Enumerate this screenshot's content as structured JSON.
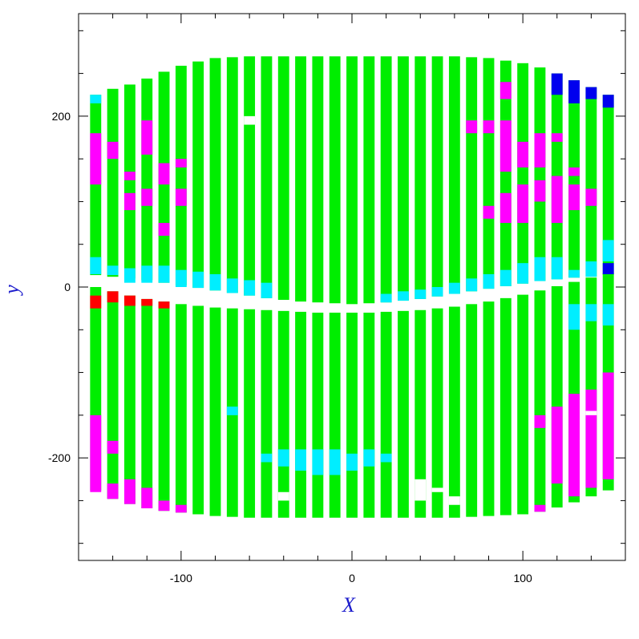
{
  "chart_data": {
    "type": "heatmap",
    "title": "",
    "xlabel": "X",
    "ylabel": "y",
    "xlim": [
      -160,
      160
    ],
    "ylim": [
      -320,
      320
    ],
    "x_ticks_labeled": [
      "-100",
      "0",
      "100"
    ],
    "x_tick_values": [
      -100,
      0,
      100
    ],
    "y_ticks_labeled": [
      "-200",
      "0",
      "200"
    ],
    "y_tick_values": [
      -200,
      0,
      200
    ],
    "grid": false,
    "legend": "none",
    "colors": {
      "green": "#00ee00",
      "cyan": "#00eeff",
      "magenta": "#ff00ff",
      "blue": "#0000ee",
      "red": "#ff0000",
      "axis_title": "#1c1ccc",
      "frame": "#000000"
    },
    "strip": {
      "x_centers": [
        -150,
        -140,
        -130,
        -120,
        -110,
        -100,
        -90,
        -80,
        -70,
        -60,
        -50,
        -40,
        -30,
        -20,
        -10,
        0,
        10,
        20,
        30,
        40,
        50,
        60,
        70,
        80,
        90,
        100,
        110,
        120,
        130,
        140,
        150
      ],
      "width": 6.5,
      "upper_top": [
        225,
        232,
        237,
        244,
        252,
        259,
        264,
        268,
        269,
        270,
        270,
        270,
        270,
        270,
        270,
        270,
        270,
        270,
        270,
        270,
        270,
        270,
        269,
        268,
        265,
        262,
        257,
        250,
        242,
        234,
        225
      ],
      "upper_bottom": [
        14,
        12,
        10,
        8,
        5,
        2,
        -1,
        -4,
        -7,
        -10,
        -13,
        -15,
        -17,
        -18,
        -19,
        -20,
        -19,
        -18,
        -16,
        -14,
        -11,
        -8,
        -5,
        -2,
        1,
        4,
        7,
        9,
        11,
        12,
        14
      ],
      "lower_top": [
        0,
        -5,
        -10,
        -14,
        -17,
        -20,
        -22,
        -24,
        -25,
        -26,
        -27,
        -28,
        -29,
        -30,
        -30,
        -30,
        -30,
        -29,
        -28,
        -27,
        -25,
        -23,
        -20,
        -17,
        -13,
        -9,
        -4,
        1,
        6,
        11,
        16
      ],
      "lower_bottom": [
        -238,
        -248,
        -254,
        -259,
        -262,
        -264,
        -266,
        -268,
        -269,
        -270,
        -270,
        -270,
        -270,
        -270,
        -270,
        -270,
        -270,
        -270,
        -270,
        -270,
        -270,
        -270,
        -269,
        -268,
        -267,
        -266,
        -263,
        -258,
        -252,
        -245,
        -238
      ]
    },
    "segments": [
      {
        "x": -150,
        "y0": 120,
        "y1": 180,
        "color": "magenta"
      },
      {
        "x": -150,
        "y0": 15,
        "y1": 35,
        "color": "cyan"
      },
      {
        "x": -150,
        "y0": -10,
        "y1": -25,
        "color": "red"
      },
      {
        "x": -150,
        "y0": -150,
        "y1": -240,
        "color": "magenta"
      },
      {
        "x": -150,
        "y0": 215,
        "y1": 225,
        "color": "cyan"
      },
      {
        "x": -140,
        "y0": 150,
        "y1": 170,
        "color": "magenta"
      },
      {
        "x": -140,
        "y0": 14,
        "y1": 25,
        "color": "cyan"
      },
      {
        "x": -140,
        "y0": -5,
        "y1": -18,
        "color": "red"
      },
      {
        "x": -140,
        "y0": -180,
        "y1": -195,
        "color": "magenta"
      },
      {
        "x": -140,
        "y0": -230,
        "y1": -248,
        "color": "magenta"
      },
      {
        "x": -130,
        "y0": 90,
        "y1": 110,
        "color": "magenta"
      },
      {
        "x": -130,
        "y0": 125,
        "y1": 135,
        "color": "magenta"
      },
      {
        "x": -130,
        "y0": 5,
        "y1": 22,
        "color": "cyan"
      },
      {
        "x": -130,
        "y0": -10,
        "y1": -22,
        "color": "red"
      },
      {
        "x": -130,
        "y0": -225,
        "y1": -254,
        "color": "magenta"
      },
      {
        "x": -120,
        "y0": 95,
        "y1": 115,
        "color": "magenta"
      },
      {
        "x": -120,
        "y0": 155,
        "y1": 195,
        "color": "magenta"
      },
      {
        "x": -120,
        "y0": 5,
        "y1": 25,
        "color": "cyan"
      },
      {
        "x": -120,
        "y0": -14,
        "y1": -22,
        "color": "red"
      },
      {
        "x": -120,
        "y0": -235,
        "y1": -259,
        "color": "magenta"
      },
      {
        "x": -110,
        "y0": 120,
        "y1": 145,
        "color": "magenta"
      },
      {
        "x": -110,
        "y0": 60,
        "y1": 75,
        "color": "magenta"
      },
      {
        "x": -110,
        "y0": 5,
        "y1": 25,
        "color": "cyan"
      },
      {
        "x": -110,
        "y0": -17,
        "y1": -25,
        "color": "red"
      },
      {
        "x": -110,
        "y0": -250,
        "y1": -262,
        "color": "magenta"
      },
      {
        "x": -100,
        "y0": 95,
        "y1": 115,
        "color": "magenta"
      },
      {
        "x": -100,
        "y0": 140,
        "y1": 150,
        "color": "magenta"
      },
      {
        "x": -100,
        "y0": 0,
        "y1": 20,
        "color": "cyan"
      },
      {
        "x": -100,
        "y0": -255,
        "y1": -264,
        "color": "magenta"
      },
      {
        "x": -90,
        "y0": -1,
        "y1": 18,
        "color": "cyan"
      },
      {
        "x": -80,
        "y0": -4,
        "y1": 15,
        "color": "cyan"
      },
      {
        "x": -70,
        "y0": -7,
        "y1": 10,
        "color": "cyan"
      },
      {
        "x": -70,
        "y0": -140,
        "y1": -150,
        "color": "cyan"
      },
      {
        "x": -60,
        "y0": -10,
        "y1": 8,
        "color": "cyan"
      },
      {
        "x": -50,
        "y0": -13,
        "y1": 5,
        "color": "cyan"
      },
      {
        "x": -50,
        "y0": -195,
        "y1": -205,
        "color": "cyan"
      },
      {
        "x": -40,
        "y0": -190,
        "y1": -210,
        "color": "cyan"
      },
      {
        "x": -30,
        "y0": -190,
        "y1": -215,
        "color": "cyan"
      },
      {
        "x": -20,
        "y0": -190,
        "y1": -220,
        "color": "cyan"
      },
      {
        "x": -10,
        "y0": -190,
        "y1": -220,
        "color": "cyan"
      },
      {
        "x": 0,
        "y0": -195,
        "y1": -215,
        "color": "cyan"
      },
      {
        "x": 10,
        "y0": -190,
        "y1": -210,
        "color": "cyan"
      },
      {
        "x": 20,
        "y0": -195,
        "y1": -205,
        "color": "cyan"
      },
      {
        "x": 20,
        "y0": -18,
        "y1": -8,
        "color": "cyan"
      },
      {
        "x": 30,
        "y0": -16,
        "y1": -5,
        "color": "cyan"
      },
      {
        "x": 40,
        "y0": -14,
        "y1": -3,
        "color": "cyan"
      },
      {
        "x": 50,
        "y0": -11,
        "y1": 0,
        "color": "cyan"
      },
      {
        "x": 60,
        "y0": -8,
        "y1": 5,
        "color": "cyan"
      },
      {
        "x": 70,
        "y0": -5,
        "y1": 10,
        "color": "cyan"
      },
      {
        "x": 70,
        "y0": 180,
        "y1": 195,
        "color": "magenta"
      },
      {
        "x": 80,
        "y0": -2,
        "y1": 15,
        "color": "cyan"
      },
      {
        "x": 80,
        "y0": 80,
        "y1": 95,
        "color": "magenta"
      },
      {
        "x": 80,
        "y0": 180,
        "y1": 195,
        "color": "magenta"
      },
      {
        "x": 90,
        "y0": 1,
        "y1": 20,
        "color": "cyan"
      },
      {
        "x": 90,
        "y0": 75,
        "y1": 110,
        "color": "magenta"
      },
      {
        "x": 90,
        "y0": 135,
        "y1": 195,
        "color": "magenta"
      },
      {
        "x": 90,
        "y0": 220,
        "y1": 240,
        "color": "magenta"
      },
      {
        "x": 100,
        "y0": 4,
        "y1": 28,
        "color": "cyan"
      },
      {
        "x": 100,
        "y0": 75,
        "y1": 120,
        "color": "magenta"
      },
      {
        "x": 100,
        "y0": 140,
        "y1": 170,
        "color": "magenta"
      },
      {
        "x": 110,
        "y0": 7,
        "y1": 35,
        "color": "cyan"
      },
      {
        "x": 110,
        "y0": 100,
        "y1": 125,
        "color": "magenta"
      },
      {
        "x": 110,
        "y0": 140,
        "y1": 180,
        "color": "magenta"
      },
      {
        "x": 110,
        "y0": -150,
        "y1": -165,
        "color": "magenta"
      },
      {
        "x": 110,
        "y0": -255,
        "y1": -263,
        "color": "magenta"
      },
      {
        "x": 120,
        "y0": 75,
        "y1": 130,
        "color": "magenta"
      },
      {
        "x": 120,
        "y0": 170,
        "y1": 180,
        "color": "magenta"
      },
      {
        "x": 120,
        "y0": 9,
        "y1": 35,
        "color": "cyan"
      },
      {
        "x": 120,
        "y0": -140,
        "y1": -230,
        "color": "magenta"
      },
      {
        "x": 120,
        "y0": 225,
        "y1": 250,
        "color": "blue"
      },
      {
        "x": 130,
        "y0": 90,
        "y1": 120,
        "color": "magenta"
      },
      {
        "x": 130,
        "y0": 130,
        "y1": 140,
        "color": "magenta"
      },
      {
        "x": 130,
        "y0": 11,
        "y1": 20,
        "color": "cyan"
      },
      {
        "x": 130,
        "y0": -20,
        "y1": -50,
        "color": "cyan"
      },
      {
        "x": 130,
        "y0": -125,
        "y1": -245,
        "color": "magenta"
      },
      {
        "x": 130,
        "y0": 215,
        "y1": 242,
        "color": "blue"
      },
      {
        "x": 140,
        "y0": 95,
        "y1": 115,
        "color": "magenta"
      },
      {
        "x": 140,
        "y0": 12,
        "y1": 30,
        "color": "cyan"
      },
      {
        "x": 140,
        "y0": -20,
        "y1": -40,
        "color": "cyan"
      },
      {
        "x": 140,
        "y0": -120,
        "y1": -235,
        "color": "magenta"
      },
      {
        "x": 140,
        "y0": 220,
        "y1": 234,
        "color": "blue"
      },
      {
        "x": 150,
        "y0": 30,
        "y1": 55,
        "color": "cyan"
      },
      {
        "x": 150,
        "y0": 15,
        "y1": 28,
        "color": "blue"
      },
      {
        "x": 150,
        "y0": -20,
        "y1": -45,
        "color": "cyan"
      },
      {
        "x": 150,
        "y0": -100,
        "y1": -225,
        "color": "magenta"
      },
      {
        "x": 150,
        "y0": 210,
        "y1": 225,
        "color": "blue"
      }
    ],
    "gaps": [
      {
        "x": -60,
        "y0": 190,
        "y1": 200
      },
      {
        "x": -40,
        "y0": -240,
        "y1": -250
      },
      {
        "x": 40,
        "y0": -225,
        "y1": -250
      },
      {
        "x": 50,
        "y0": -235,
        "y1": -240
      },
      {
        "x": 60,
        "y0": -245,
        "y1": -255
      },
      {
        "x": 140,
        "y0": -145,
        "y1": -150
      }
    ]
  }
}
